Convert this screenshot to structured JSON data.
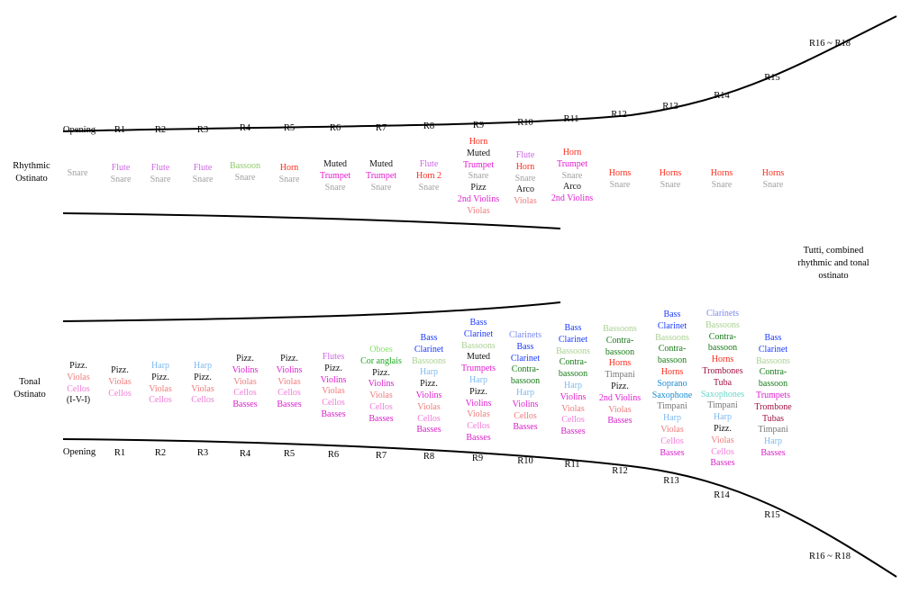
{
  "colors": {
    "snare": "#a0a0a0",
    "flute": "#cc66e6",
    "bassoon": "#8fc96a",
    "horn": "#ff2a1a",
    "muted": "#111111",
    "trumpet": "#e31bd0",
    "pizz": "#111111",
    "arco": "#111111",
    "violins": "#e01fd0",
    "violas": "#f07a7a",
    "cellos": "#f07ad8",
    "basses": "#d61fc8",
    "harp": "#7fbaf0",
    "oboes": "#86e06b",
    "coranglais": "#1aaa1a",
    "bassclarinet": "#1a3aff",
    "clarinets": "#7a8af0",
    "bassoons": "#a8d090",
    "contrabassoon": "#167a16",
    "timpani": "#777777",
    "soprano": "#1a8ad0",
    "saxophones": "#6ad6c8",
    "trombones": "#a01040",
    "tuba": "#a01040",
    "tubas": "#a01040",
    "ivi": "#111111"
  },
  "rhythmic": {
    "title_line1": "Rhythmic",
    "title_line2": "Ostinato",
    "labels": [
      "Opening",
      "R1",
      "R2",
      "R3",
      "R4",
      "R5",
      "R6",
      "R7",
      "R8",
      "R9",
      "R10",
      "R11",
      "R12",
      "R13",
      "R14",
      "R15",
      "R16 ~ R18"
    ],
    "columns": [
      {
        "items": [
          {
            "t": "Snare",
            "c": "snare"
          }
        ]
      },
      {
        "items": [
          {
            "t": "Flute",
            "c": "flute"
          },
          {
            "t": "Snare",
            "c": "snare"
          }
        ]
      },
      {
        "items": [
          {
            "t": "Flute",
            "c": "flute"
          },
          {
            "t": "Snare",
            "c": "snare"
          }
        ]
      },
      {
        "items": [
          {
            "t": "Flute",
            "c": "flute"
          },
          {
            "t": "Snare",
            "c": "snare"
          }
        ]
      },
      {
        "items": [
          {
            "t": "Bassoon",
            "c": "bassoon"
          },
          {
            "t": "Snare",
            "c": "snare"
          }
        ]
      },
      {
        "items": [
          {
            "t": "Horn",
            "c": "horn"
          },
          {
            "t": "Snare",
            "c": "snare"
          }
        ]
      },
      {
        "items": [
          {
            "t": "Muted",
            "c": "muted"
          },
          {
            "t": "Trumpet",
            "c": "trumpet"
          },
          {
            "t": "Snare",
            "c": "snare"
          }
        ]
      },
      {
        "items": [
          {
            "t": "Muted",
            "c": "muted"
          },
          {
            "t": "Trumpet",
            "c": "trumpet"
          },
          {
            "t": "Snare",
            "c": "snare"
          }
        ]
      },
      {
        "items": [
          {
            "t": "Flute",
            "c": "flute"
          },
          {
            "t": "Horn 2",
            "c": "horn"
          },
          {
            "t": "Snare",
            "c": "snare"
          }
        ]
      },
      {
        "items": [
          {
            "t": "Horn",
            "c": "horn"
          },
          {
            "t": "Muted",
            "c": "muted"
          },
          {
            "t": "Trumpet",
            "c": "trumpet"
          },
          {
            "t": "Snare",
            "c": "snare"
          },
          {
            "t": "Pizz",
            "c": "pizz"
          },
          {
            "t": "2nd Violins",
            "c": "violins"
          },
          {
            "t": "Violas",
            "c": "violas"
          }
        ]
      },
      {
        "items": [
          {
            "t": "Flute",
            "c": "flute"
          },
          {
            "t": "Horn",
            "c": "horn"
          },
          {
            "t": "Snare",
            "c": "snare"
          },
          {
            "t": "Arco",
            "c": "arco"
          },
          {
            "t": "Violas",
            "c": "violas"
          }
        ]
      },
      {
        "items": [
          {
            "t": "Horn",
            "c": "horn"
          },
          {
            "t": "Trumpet",
            "c": "trumpet"
          },
          {
            "t": "Snare",
            "c": "snare"
          },
          {
            "t": "Arco",
            "c": "arco"
          },
          {
            "t": "2nd Violins",
            "c": "violins"
          }
        ]
      },
      {
        "items": [
          {
            "t": "Horns",
            "c": "horn"
          },
          {
            "t": "Snare",
            "c": "snare"
          }
        ]
      },
      {
        "items": [
          {
            "t": "Horns",
            "c": "horn"
          },
          {
            "t": "Snare",
            "c": "snare"
          }
        ]
      },
      {
        "items": [
          {
            "t": "Horns",
            "c": "horn"
          },
          {
            "t": "Snare",
            "c": "snare"
          }
        ]
      },
      {
        "items": [
          {
            "t": "Horns",
            "c": "horn"
          },
          {
            "t": "Snare",
            "c": "snare"
          }
        ]
      }
    ]
  },
  "tutti": {
    "line1": "Tutti, combined",
    "line2": "rhythmic and tonal",
    "line3": "ostinato"
  },
  "tonal": {
    "title_line1": "Tonal",
    "title_line2": "Ostinato",
    "labels": [
      "Opening",
      "R1",
      "R2",
      "R3",
      "R4",
      "R5",
      "R6",
      "R7",
      "R8",
      "R9",
      "R10",
      "R11",
      "R12",
      "R13",
      "R14",
      "R15",
      "R16 ~ R18"
    ],
    "columns": [
      {
        "items": [
          {
            "t": "Pizz.",
            "c": "pizz"
          },
          {
            "t": "Violas",
            "c": "violas"
          },
          {
            "t": "Cellos",
            "c": "cellos"
          },
          {
            "t": "(I-V-I)",
            "c": "ivi"
          }
        ]
      },
      {
        "items": [
          {
            "t": "Pizz.",
            "c": "pizz"
          },
          {
            "t": "Violas",
            "c": "violas"
          },
          {
            "t": "Cellos",
            "c": "cellos"
          }
        ]
      },
      {
        "items": [
          {
            "t": "Harp",
            "c": "harp"
          },
          {
            "t": "Pizz.",
            "c": "pizz"
          },
          {
            "t": "Violas",
            "c": "violas"
          },
          {
            "t": "Cellos",
            "c": "cellos"
          }
        ]
      },
      {
        "items": [
          {
            "t": "Harp",
            "c": "harp"
          },
          {
            "t": "Pizz.",
            "c": "pizz"
          },
          {
            "t": "Violas",
            "c": "violas"
          },
          {
            "t": "Cellos",
            "c": "cellos"
          }
        ]
      },
      {
        "items": [
          {
            "t": "Pizz.",
            "c": "pizz"
          },
          {
            "t": "Violins",
            "c": "violins"
          },
          {
            "t": "Violas",
            "c": "violas"
          },
          {
            "t": "Cellos",
            "c": "cellos"
          },
          {
            "t": "Basses",
            "c": "basses"
          }
        ]
      },
      {
        "items": [
          {
            "t": "Pizz.",
            "c": "pizz"
          },
          {
            "t": "Violins",
            "c": "violins"
          },
          {
            "t": "Violas",
            "c": "violas"
          },
          {
            "t": "Cellos",
            "c": "cellos"
          },
          {
            "t": "Basses",
            "c": "basses"
          }
        ]
      },
      {
        "items": [
          {
            "t": "Flutes",
            "c": "flute"
          },
          {
            "t": "Pizz.",
            "c": "pizz"
          },
          {
            "t": "Violins",
            "c": "violins"
          },
          {
            "t": "Violas",
            "c": "violas"
          },
          {
            "t": "Cellos",
            "c": "cellos"
          },
          {
            "t": "Basses",
            "c": "basses"
          }
        ]
      },
      {
        "items": [
          {
            "t": "Oboes",
            "c": "oboes"
          },
          {
            "t": "Cor anglais",
            "c": "coranglais"
          },
          {
            "t": "Pizz.",
            "c": "pizz"
          },
          {
            "t": "Violins",
            "c": "violins"
          },
          {
            "t": "Violas",
            "c": "violas"
          },
          {
            "t": "Cellos",
            "c": "cellos"
          },
          {
            "t": "Basses",
            "c": "basses"
          }
        ]
      },
      {
        "items": [
          {
            "t": "Bass",
            "c": "bassclarinet"
          },
          {
            "t": "Clarinet",
            "c": "bassclarinet"
          },
          {
            "t": "Bassoons",
            "c": "bassoons"
          },
          {
            "t": "Harp",
            "c": "harp"
          },
          {
            "t": "Pizz.",
            "c": "pizz"
          },
          {
            "t": "Violins",
            "c": "violins"
          },
          {
            "t": "Violas",
            "c": "violas"
          },
          {
            "t": "Cellos",
            "c": "cellos"
          },
          {
            "t": "Basses",
            "c": "basses"
          }
        ]
      },
      {
        "items": [
          {
            "t": "Bass",
            "c": "bassclarinet"
          },
          {
            "t": "Clarinet",
            "c": "bassclarinet"
          },
          {
            "t": "Bassoons",
            "c": "bassoons"
          },
          {
            "t": "Muted",
            "c": "muted"
          },
          {
            "t": "Trumpets",
            "c": "trumpet"
          },
          {
            "t": "Harp",
            "c": "harp"
          },
          {
            "t": "Pizz.",
            "c": "pizz"
          },
          {
            "t": "Violins",
            "c": "violins"
          },
          {
            "t": "Violas",
            "c": "violas"
          },
          {
            "t": "Cellos",
            "c": "cellos"
          },
          {
            "t": "Basses",
            "c": "basses"
          }
        ]
      },
      {
        "items": [
          {
            "t": "Clarinets",
            "c": "clarinets"
          },
          {
            "t": "Bass",
            "c": "bassclarinet"
          },
          {
            "t": "Clarinet",
            "c": "bassclarinet"
          },
          {
            "t": "Contra-",
            "c": "contrabassoon"
          },
          {
            "t": "bassoon",
            "c": "contrabassoon"
          },
          {
            "t": "Harp",
            "c": "harp"
          },
          {
            "t": "Violins",
            "c": "violins"
          },
          {
            "t": "Cellos",
            "c": "violas"
          },
          {
            "t": "Basses",
            "c": "basses"
          }
        ]
      },
      {
        "items": [
          {
            "t": "Bass",
            "c": "bassclarinet"
          },
          {
            "t": "Clarinet",
            "c": "bassclarinet"
          },
          {
            "t": "Bassoons",
            "c": "bassoons"
          },
          {
            "t": "Contra-",
            "c": "contrabassoon"
          },
          {
            "t": "bassoon",
            "c": "contrabassoon"
          },
          {
            "t": "Harp",
            "c": "harp"
          },
          {
            "t": "Violins",
            "c": "violins"
          },
          {
            "t": "Violas",
            "c": "violas"
          },
          {
            "t": "Cellos",
            "c": "cellos"
          },
          {
            "t": "Basses",
            "c": "basses"
          }
        ]
      },
      {
        "items": [
          {
            "t": "Bassoons",
            "c": "bassoons"
          },
          {
            "t": "Contra-",
            "c": "contrabassoon"
          },
          {
            "t": "bassoon",
            "c": "contrabassoon"
          },
          {
            "t": "Horns",
            "c": "horn"
          },
          {
            "t": "Timpani",
            "c": "timpani"
          },
          {
            "t": "Pizz.",
            "c": "pizz"
          },
          {
            "t": "2nd Violins",
            "c": "violins"
          },
          {
            "t": "Violas",
            "c": "violas"
          },
          {
            "t": "Basses",
            "c": "basses"
          }
        ]
      },
      {
        "items": [
          {
            "t": "Bass",
            "c": "bassclarinet"
          },
          {
            "t": "Clarinet",
            "c": "bassclarinet"
          },
          {
            "t": "Bassoons",
            "c": "bassoons"
          },
          {
            "t": "Contra-",
            "c": "contrabassoon"
          },
          {
            "t": "bassoon",
            "c": "contrabassoon"
          },
          {
            "t": "Horns",
            "c": "horn"
          },
          {
            "t": "Soprano",
            "c": "soprano"
          },
          {
            "t": "Saxophone",
            "c": "soprano"
          },
          {
            "t": "Timpani",
            "c": "timpani"
          },
          {
            "t": "Harp",
            "c": "harp"
          },
          {
            "t": "Violas",
            "c": "violas"
          },
          {
            "t": "Cellos",
            "c": "cellos"
          },
          {
            "t": "Basses",
            "c": "basses"
          }
        ]
      },
      {
        "items": [
          {
            "t": "Clarinets",
            "c": "clarinets"
          },
          {
            "t": "Bassoons",
            "c": "bassoons"
          },
          {
            "t": "Contra-",
            "c": "contrabassoon"
          },
          {
            "t": "bassoon",
            "c": "contrabassoon"
          },
          {
            "t": "Horns",
            "c": "horn"
          },
          {
            "t": "Trombones",
            "c": "trombones"
          },
          {
            "t": "Tuba",
            "c": "tuba"
          },
          {
            "t": "Saxophones",
            "c": "saxophones"
          },
          {
            "t": "Timpani",
            "c": "timpani"
          },
          {
            "t": "Harp",
            "c": "harp"
          },
          {
            "t": "Pizz.",
            "c": "pizz"
          },
          {
            "t": "Violas",
            "c": "violas"
          },
          {
            "t": "Cellos",
            "c": "cellos"
          },
          {
            "t": "Basses",
            "c": "basses"
          }
        ]
      },
      {
        "items": [
          {
            "t": "Bass",
            "c": "bassclarinet"
          },
          {
            "t": "Clarinet",
            "c": "bassclarinet"
          },
          {
            "t": "Bassoons",
            "c": "bassoons"
          },
          {
            "t": "Contra-",
            "c": "contrabassoon"
          },
          {
            "t": "bassoon",
            "c": "contrabassoon"
          },
          {
            "t": "Trumpets",
            "c": "trumpet"
          },
          {
            "t": "Trombone",
            "c": "trombones"
          },
          {
            "t": "Tubas",
            "c": "tubas"
          },
          {
            "t": "Timpani",
            "c": "timpani"
          },
          {
            "t": "Harp",
            "c": "harp"
          },
          {
            "t": "Basses",
            "c": "basses"
          }
        ]
      }
    ]
  }
}
